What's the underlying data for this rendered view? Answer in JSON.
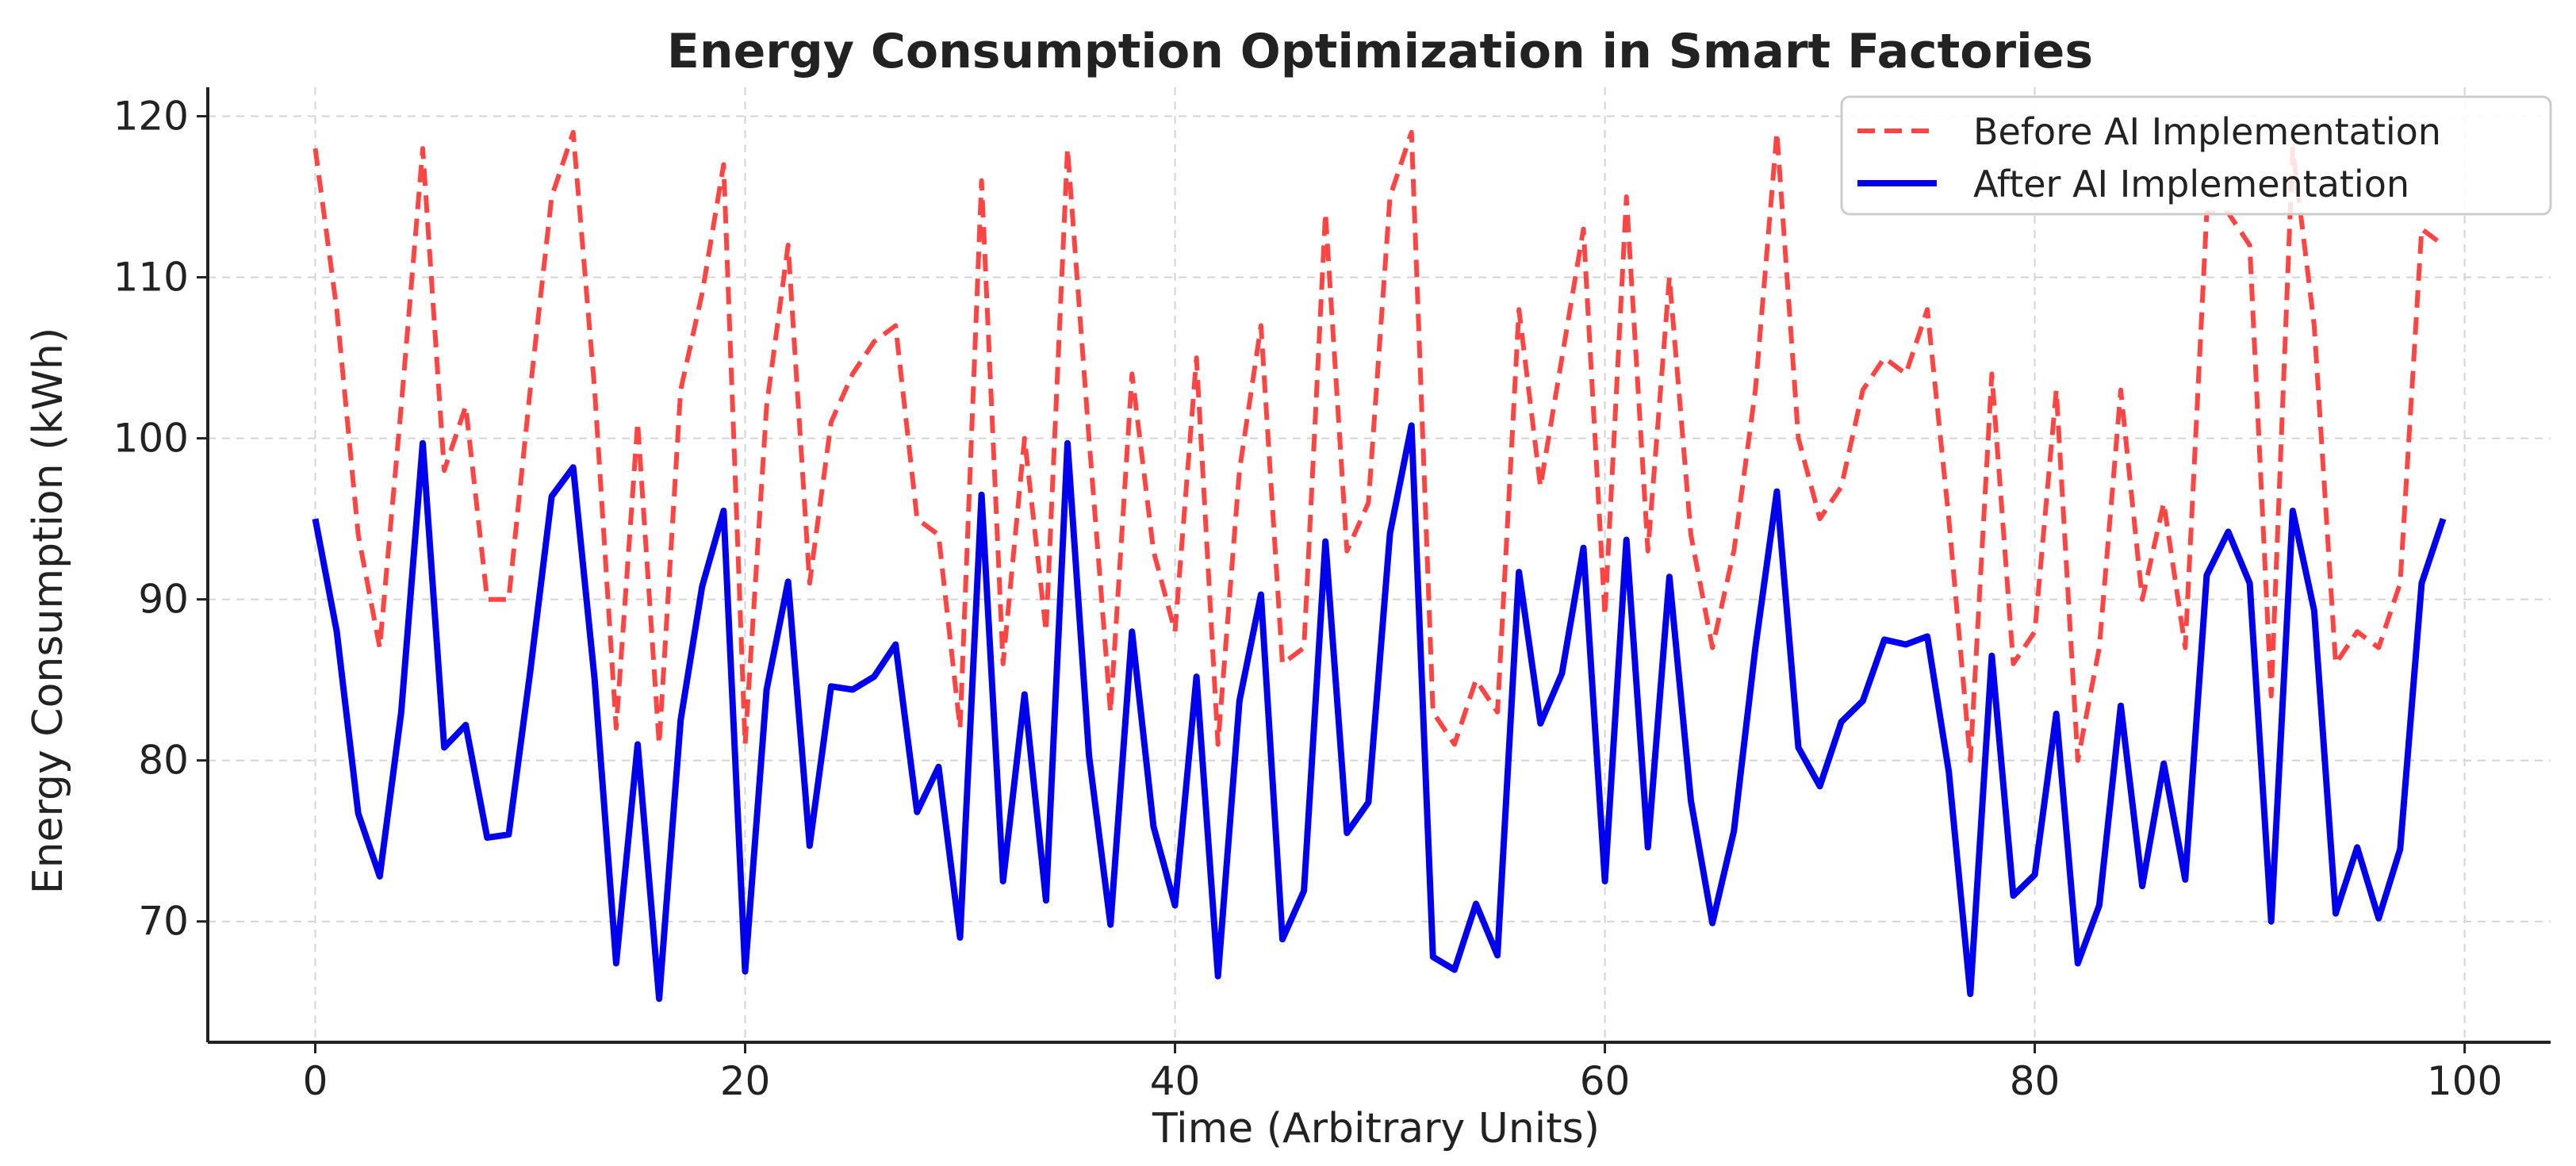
{
  "chart_data": {
    "type": "line",
    "title": "Energy Consumption Optimization in Smart Factories",
    "xlabel": "Time (Arbitrary Units)",
    "ylabel": "Energy Consumption (kWh)",
    "xlim": [
      -5,
      104
    ],
    "ylim": [
      62.5,
      121.8
    ],
    "xticks": [
      0,
      20,
      40,
      60,
      80,
      100
    ],
    "yticks": [
      70,
      80,
      90,
      100,
      110,
      120
    ],
    "grid": true,
    "legend_position": "top-right",
    "x": [
      0,
      1,
      2,
      3,
      4,
      5,
      6,
      7,
      8,
      9,
      10,
      11,
      12,
      13,
      14,
      15,
      16,
      17,
      18,
      19,
      20,
      21,
      22,
      23,
      24,
      25,
      26,
      27,
      28,
      29,
      30,
      31,
      32,
      33,
      34,
      35,
      36,
      37,
      38,
      39,
      40,
      41,
      42,
      43,
      44,
      45,
      46,
      47,
      48,
      49,
      50,
      51,
      52,
      53,
      54,
      55,
      56,
      57,
      58,
      59,
      60,
      61,
      62,
      63,
      64,
      65,
      66,
      67,
      68,
      69,
      70,
      71,
      72,
      73,
      74,
      75,
      76,
      77,
      78,
      79,
      80,
      81,
      82,
      83,
      84,
      85,
      86,
      87,
      88,
      89,
      90,
      91,
      92,
      93,
      94,
      95,
      96,
      97,
      98,
      99
    ],
    "series": [
      {
        "name": "Before AI Implementation",
        "color": "#ff4444",
        "style": "dashed",
        "values": [
          118,
          108,
          94,
          87,
          102,
          118,
          98,
          102,
          90,
          90,
          103,
          115,
          119,
          103,
          82,
          101,
          81,
          103,
          109,
          117,
          81,
          102,
          112,
          91,
          101,
          104,
          106,
          107,
          95,
          94,
          82,
          116,
          86,
          100,
          88,
          118,
          100,
          83,
          104,
          93,
          88,
          105,
          81,
          98,
          107,
          86,
          87,
          114,
          93,
          96,
          115,
          119,
          83,
          81,
          85,
          83,
          108,
          97,
          105,
          113,
          89,
          115,
          93,
          110,
          94,
          87,
          93,
          103,
          119,
          100,
          95,
          97,
          103,
          105,
          104,
          108,
          95,
          80,
          104,
          86,
          88,
          103,
          80,
          87,
          103,
          90,
          96,
          87,
          114,
          114,
          112,
          84,
          118,
          107,
          86,
          88,
          87,
          91,
          113,
          112
        ]
      },
      {
        "name": "After AI Implementation",
        "color": "#0000ee",
        "style": "solid",
        "values": [
          95,
          88,
          76.7,
          72.8,
          83,
          99.7,
          80.8,
          82.2,
          75.2,
          75.4,
          85.5,
          96.4,
          98.2,
          85,
          67.4,
          81,
          65.2,
          82.5,
          90.8,
          95.5,
          66.9,
          84.4,
          91.1,
          74.7,
          84.6,
          84.4,
          85.2,
          87.2,
          76.8,
          79.6,
          69,
          96.5,
          72.5,
          84.1,
          71.3,
          99.7,
          80.3,
          69.8,
          88,
          75.9,
          71,
          85.2,
          66.6,
          83.7,
          90.3,
          68.9,
          71.9,
          93.6,
          75.5,
          77.4,
          94.1,
          100.8,
          67.8,
          67,
          71.1,
          67.9,
          91.7,
          82.3,
          85.4,
          93.2,
          72.5,
          93.7,
          74.6,
          91.4,
          77.5,
          69.9,
          75.6,
          87,
          96.7,
          80.8,
          78.4,
          82.4,
          83.7,
          87.5,
          87.2,
          87.7,
          79.3,
          65.5,
          86.5,
          71.6,
          72.9,
          82.9,
          67.4,
          71,
          83.4,
          72.2,
          79.8,
          72.6,
          91.5,
          94.2,
          91,
          70,
          95.5,
          89.3,
          70.5,
          74.6,
          70.2,
          74.5,
          91,
          95
        ]
      }
    ]
  }
}
